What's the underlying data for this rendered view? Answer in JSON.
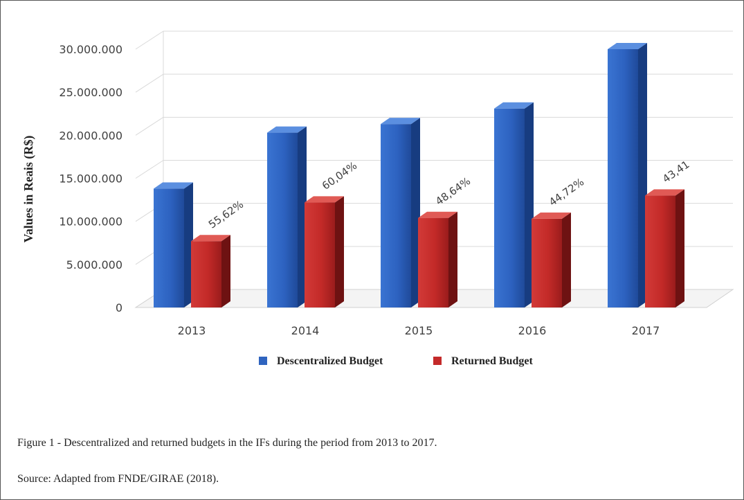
{
  "chart_data": {
    "type": "bar",
    "title": "",
    "xlabel": "",
    "ylabel": "Values in Reais (R$)",
    "categories": [
      "2013",
      "2014",
      "2015",
      "2016",
      "2017"
    ],
    "series": [
      {
        "name": "Descentralized Budget",
        "color": "#2f64bf",
        "values": [
          13800000,
          20300000,
          21300000,
          23100000,
          30000000
        ]
      },
      {
        "name": "Returned Budget",
        "color": "#c42a2a",
        "values": [
          7700000,
          12200000,
          10400000,
          10300000,
          13000000
        ],
        "labels": [
          "55,62%",
          "60,04%",
          "48,64%",
          "44,72%",
          "43,41"
        ]
      }
    ],
    "ylim": [
      0,
      30000000
    ],
    "yticks": [
      "0",
      "5.000.000",
      "10.000.000",
      "15.000.000",
      "20.000.000",
      "25.000.000",
      "30.000.000"
    ],
    "grid": true,
    "legend_position": "bottom"
  },
  "caption": {
    "figure": "Figure 1 - Descentralized and returned budgets in the IFs during the period from 2013 to 2017.",
    "source": "Source: Adapted from FNDE/GIRAE (2018)."
  }
}
